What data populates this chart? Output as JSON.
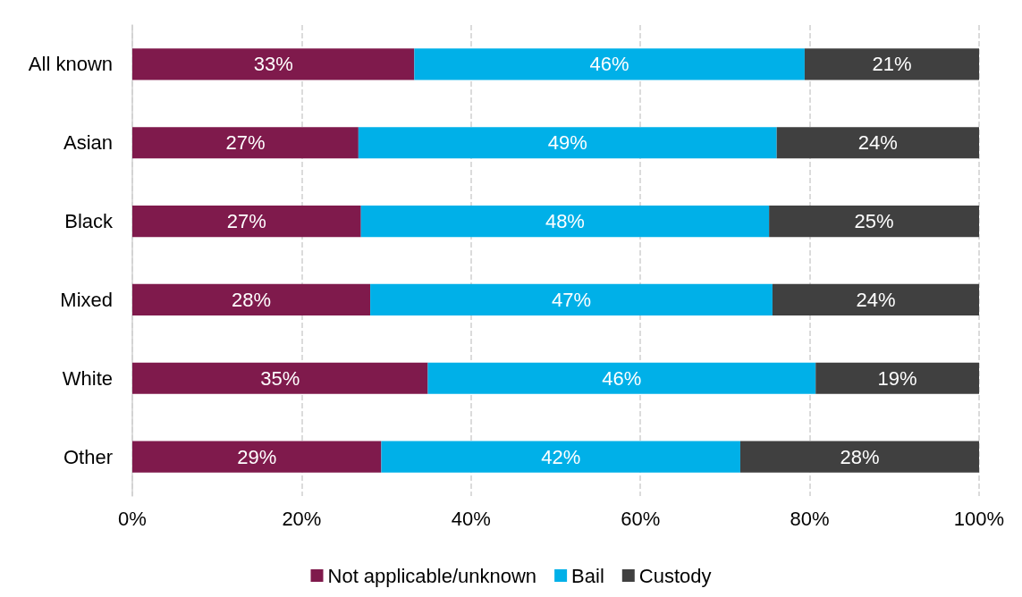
{
  "chart_data": {
    "type": "bar",
    "orientation": "horizontal",
    "stacked": true,
    "categories": [
      "All known",
      "Asian",
      "Black",
      "Mixed",
      "White",
      "Other"
    ],
    "series": [
      {
        "name": "Not applicable/unknown",
        "color": "#7f1a4c",
        "values": [
          33.3,
          26.7,
          27.0,
          28.1,
          34.9,
          29.4
        ],
        "value_labels": [
          "33%",
          "27%",
          "27%",
          "28%",
          "35%",
          "29%"
        ]
      },
      {
        "name": "Bail",
        "color": "#00b0e8",
        "values": [
          46.1,
          49.4,
          48.2,
          47.5,
          45.8,
          42.4
        ],
        "value_labels": [
          "46%",
          "49%",
          "48%",
          "47%",
          "46%",
          "42%"
        ]
      },
      {
        "name": "Custody",
        "color": "#404040",
        "values": [
          20.6,
          23.9,
          24.8,
          24.4,
          19.3,
          28.2
        ],
        "value_labels": [
          "21%",
          "24%",
          "25%",
          "24%",
          "19%",
          "28%"
        ]
      }
    ],
    "xlim": [
      0,
      100
    ],
    "xticks": [
      {
        "value": 0,
        "label": "0%"
      },
      {
        "value": 20,
        "label": "20%"
      },
      {
        "value": 40,
        "label": "40%"
      },
      {
        "value": 60,
        "label": "60%"
      },
      {
        "value": 80,
        "label": "80%"
      },
      {
        "value": 100,
        "label": "100%"
      }
    ],
    "grid": "x",
    "legend": "bottom"
  }
}
